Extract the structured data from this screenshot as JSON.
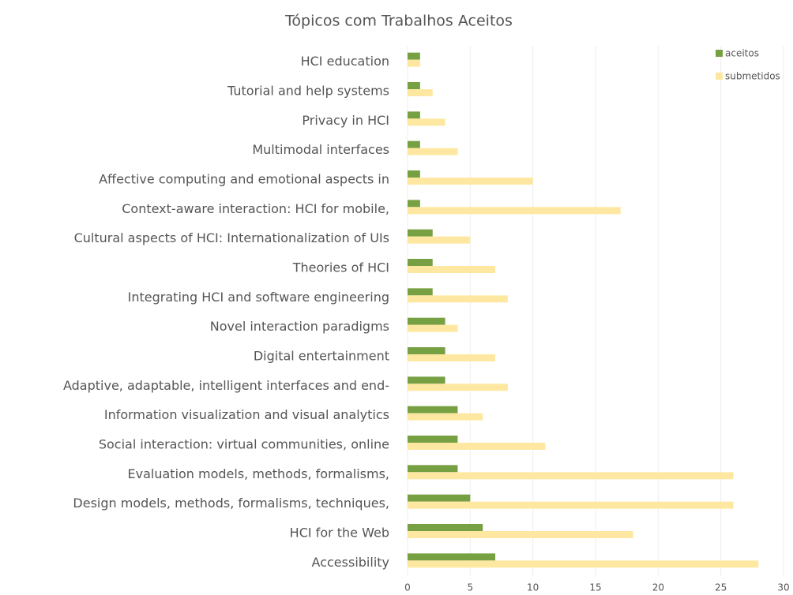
{
  "chart_data": {
    "type": "barh",
    "title": "Tópicos com Trabalhos Aceitos",
    "categories": [
      "HCI education",
      "Tutorial and help systems",
      "Privacy in HCI",
      "Multimodal interfaces",
      "Affective computing and emotional aspects in",
      "Context-aware interaction: HCI for mobile,",
      "Cultural aspects of HCI: Internationalization of UIs",
      "Theories of HCI",
      "Integrating HCI and software engineering",
      "Novel interaction paradigms",
      "Digital entertainment",
      "Adaptive, adaptable, intelligent interfaces and end-",
      "Information visualization and visual analytics",
      "Social interaction: virtual communities, online",
      "Evaluation models, methods, formalisms,",
      "Design models, methods, formalisms, techniques,",
      "HCI for the Web",
      "Accessibility"
    ],
    "series": [
      {
        "name": "aceitos",
        "color": "#77a043",
        "values": [
          1,
          1,
          1,
          1,
          1,
          1,
          2,
          2,
          2,
          3,
          3,
          3,
          4,
          4,
          4,
          5,
          6,
          7
        ]
      },
      {
        "name": "submetidos",
        "color": "#fee8a1",
        "values": [
          1,
          2,
          3,
          4,
          10,
          17,
          5,
          7,
          8,
          4,
          7,
          8,
          6,
          11,
          26,
          26,
          18,
          28
        ]
      }
    ],
    "xlim": [
      0,
      30
    ],
    "xticks": [
      0,
      5,
      10,
      15,
      20,
      25,
      30
    ],
    "grid": true,
    "legend": "top-right"
  }
}
